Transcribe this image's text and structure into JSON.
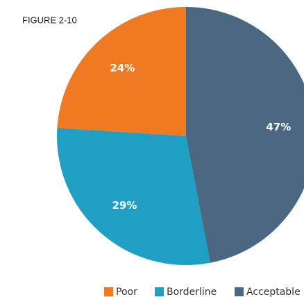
{
  "chart_data": {
    "type": "pie",
    "title": "FIGURE 2-10",
    "categories": [
      "Poor",
      "Borderline",
      "Acceptable"
    ],
    "values": [
      24,
      29,
      47
    ],
    "value_labels": [
      "24%",
      "29%",
      "47%"
    ],
    "colors": [
      "#f07a22",
      "#1f9fc4",
      "#4a6882"
    ],
    "legend": "bottom"
  }
}
